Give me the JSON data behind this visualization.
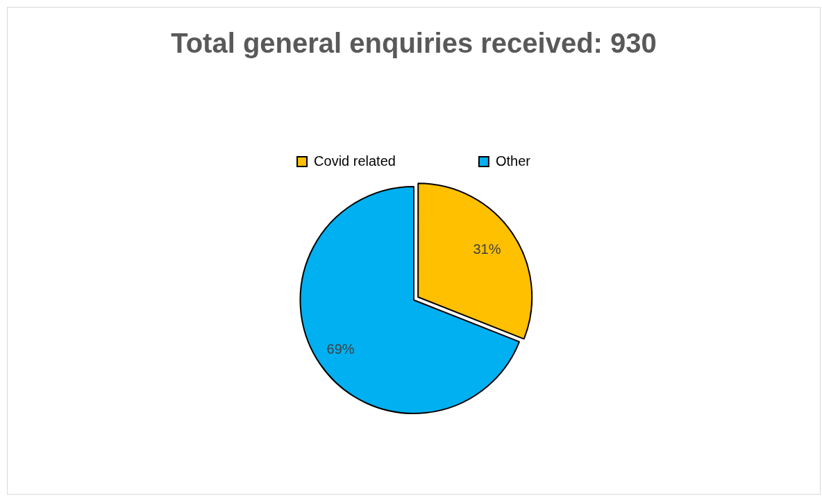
{
  "chart_data": {
    "type": "pie",
    "title": "Total general enquiries received: 930",
    "categories": [
      "Covid related",
      "Other"
    ],
    "values": [
      31,
      69
    ],
    "colors": [
      "#ffc000",
      "#00b0f0"
    ],
    "value_labels": [
      "31%",
      "69%"
    ],
    "legend": "top"
  }
}
